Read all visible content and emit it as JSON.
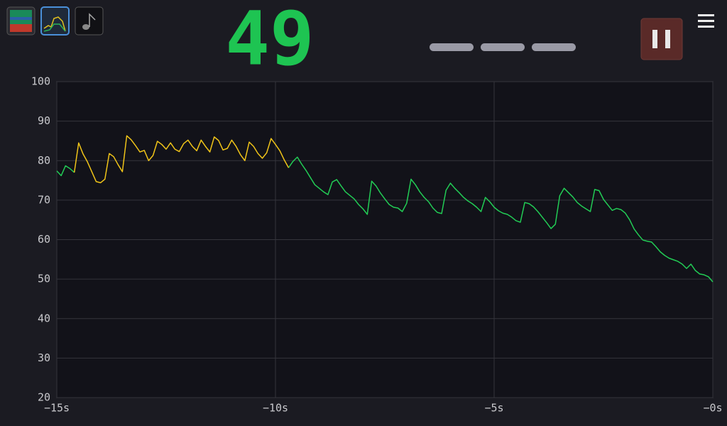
{
  "display": {
    "reading": "49"
  },
  "chart_data": {
    "type": "line",
    "x": [
      -15,
      -14.9,
      -14.8,
      -14.7,
      -14.6,
      -14.5,
      -14.4,
      -14.3,
      -14.2,
      -14.1,
      -14,
      -13.9,
      -13.8,
      -13.7,
      -13.6,
      -13.5,
      -13.4,
      -13.3,
      -13.2,
      -13.1,
      -13,
      -12.9,
      -12.8,
      -12.7,
      -12.6,
      -12.5,
      -12.4,
      -12.3,
      -12.2,
      -12.1,
      -12,
      -11.9,
      -11.8,
      -11.7,
      -11.6,
      -11.5,
      -11.4,
      -11.3,
      -11.2,
      -11.1,
      -11,
      -10.9,
      -10.8,
      -10.7,
      -10.6,
      -10.5,
      -10.4,
      -10.3,
      -10.2,
      -10.1,
      -10,
      -9.9,
      -9.8,
      -9.7,
      -9.6,
      -9.5,
      -9.4,
      -9.3,
      -9.2,
      -9.1,
      -9,
      -8.9,
      -8.8,
      -8.7,
      -8.6,
      -8.5,
      -8.4,
      -8.3,
      -8.2,
      -8.1,
      -8,
      -7.9,
      -7.8,
      -7.7,
      -7.6,
      -7.5,
      -7.4,
      -7.3,
      -7.2,
      -7.1,
      -7,
      -6.9,
      -6.8,
      -6.7,
      -6.6,
      -6.5,
      -6.4,
      -6.3,
      -6.2,
      -6.1,
      -6,
      -5.9,
      -5.8,
      -5.7,
      -5.6,
      -5.5,
      -5.4,
      -5.3,
      -5.2,
      -5.1,
      -5,
      -4.9,
      -4.8,
      -4.7,
      -4.6,
      -4.5,
      -4.4,
      -4.3,
      -4.2,
      -4.1,
      -4,
      -3.9,
      -3.8,
      -3.7,
      -3.6,
      -3.5,
      -3.4,
      -3.3,
      -3.2,
      -3.1,
      -3,
      -2.9,
      -2.8,
      -2.7,
      -2.6,
      -2.5,
      -2.4,
      -2.3,
      -2.2,
      -2.1,
      -2,
      -1.9,
      -1.8,
      -1.7,
      -1.6,
      -1.5,
      -1.4,
      -1.3,
      -1.2,
      -1.1,
      -1,
      -0.9,
      -0.8,
      -0.7,
      -0.6,
      -0.5,
      -0.4,
      -0.3,
      -0.2,
      -0.1,
      0
    ],
    "series": [
      {
        "color": "#22cc55",
        "values": [
          77.4,
          76.2,
          78.7,
          78,
          77,
          null,
          null,
          null,
          null,
          null,
          null,
          null,
          null,
          null,
          null,
          null,
          null,
          null,
          null,
          null,
          null,
          null,
          null,
          null,
          null,
          null,
          null,
          null,
          null,
          null,
          null,
          null,
          null,
          null,
          null,
          null,
          null,
          null,
          null,
          null,
          null,
          null,
          null,
          null,
          null,
          null,
          null,
          null,
          null,
          null,
          null,
          null,
          null,
          78.2,
          79.8,
          80.9,
          79.1,
          77.5,
          75.7,
          73.9,
          73,
          72.1,
          71.4,
          74.6,
          75.2,
          73.6,
          72.1,
          71.2,
          70.3,
          68.9,
          67.8,
          66.4,
          74.8,
          73.6,
          71.8,
          70.3,
          68.9,
          68.2,
          68,
          67.1,
          69.2,
          75.3,
          73.9,
          72.1,
          70.7,
          69.6,
          68,
          66.9,
          66.6,
          72.5,
          74.3,
          73,
          71.9,
          70.7,
          69.8,
          69.1,
          68.2,
          67.1,
          70.7,
          69.6,
          68.2,
          67.3,
          66.7,
          66.4,
          65.7,
          64.8,
          64.4,
          69.4,
          69.1,
          68.3,
          67.1,
          65.7,
          64.3,
          62.8,
          63.9,
          71.1,
          73,
          71.9,
          70.8,
          69.4,
          68.5,
          67.8,
          67.1,
          72.7,
          72.4,
          70.2,
          68.8,
          67.4,
          67.9,
          67.6,
          66.7,
          65,
          62.7,
          61.2,
          59.9,
          59.6,
          59.4,
          58.2,
          56.9,
          56,
          55.3,
          54.9,
          54.5,
          53.8,
          52.7,
          53.8,
          52.2,
          51.3,
          51.1,
          50.6,
          49.3
        ]
      },
      {
        "color": "#f0c419",
        "values": [
          null,
          null,
          null,
          null,
          77,
          84.5,
          81.7,
          79.7,
          77.2,
          74.7,
          74.4,
          75.3,
          81.8,
          81,
          79,
          77.2,
          86.3,
          85.3,
          83.8,
          82.2,
          82.6,
          80,
          81.3,
          84.9,
          84.1,
          82.9,
          84.5,
          82.9,
          82.3,
          84.3,
          85.2,
          83.6,
          82.5,
          85.2,
          83.6,
          82.2,
          86,
          85.1,
          82.7,
          83.1,
          85.2,
          83.6,
          81.5,
          80,
          84.7,
          83.6,
          81.8,
          80.6,
          82,
          85.6,
          84.1,
          82.5,
          80.2,
          78.2,
          null,
          null,
          null,
          null,
          null,
          null,
          null,
          null,
          null,
          null,
          null,
          null,
          null,
          null,
          null,
          null,
          null,
          null,
          null,
          null,
          null,
          null,
          null,
          null,
          null,
          null,
          null,
          null,
          null,
          null,
          null,
          null,
          null,
          null,
          null,
          null,
          null,
          null,
          null,
          null,
          null,
          null,
          null,
          null,
          null,
          null,
          null,
          null,
          null,
          null,
          null,
          null,
          null,
          null,
          null,
          null,
          null,
          null,
          null,
          null,
          null,
          null,
          null,
          null,
          null,
          null,
          null,
          null,
          null,
          null,
          null,
          null,
          null,
          null,
          null,
          null,
          null,
          null,
          null,
          null,
          null,
          null,
          null,
          null,
          null,
          null,
          null,
          null,
          null,
          null,
          null,
          null,
          null,
          null,
          null,
          null,
          null
        ]
      }
    ],
    "xlim": [
      -15,
      0
    ],
    "xticks": [
      {
        "value": -15,
        "label": "−15s"
      },
      {
        "value": -10,
        "label": "−10s"
      },
      {
        "value": -5,
        "label": "−5s"
      },
      {
        "value": 0,
        "label": "−0s"
      }
    ],
    "ylim": [
      20,
      100
    ],
    "yticks": [
      20,
      30,
      40,
      50,
      60,
      70,
      80,
      90,
      100
    ],
    "grid": true
  }
}
